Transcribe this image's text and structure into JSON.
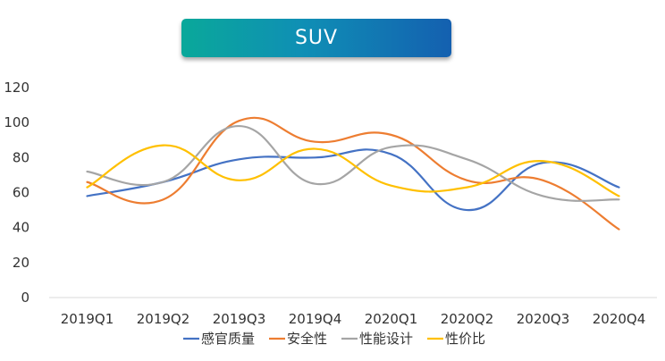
{
  "chart_data": {
    "type": "line",
    "title": "SUV",
    "categories": [
      "2019Q1",
      "2019Q2",
      "2019Q3",
      "2019Q4",
      "2020Q1",
      "2020Q2",
      "2020Q3",
      "2020Q4"
    ],
    "ylim": [
      0,
      120
    ],
    "yticks": [
      0,
      20,
      40,
      60,
      80,
      100,
      120
    ],
    "xlabel": "",
    "ylabel": "",
    "grid": false,
    "legend_position": "bottom",
    "series": [
      {
        "name": "感官质量",
        "color": "#4472c4",
        "values": [
          58,
          66,
          79,
          80,
          82,
          50,
          77,
          63
        ]
      },
      {
        "name": "安全性",
        "color": "#ed7d31",
        "values": [
          66,
          56,
          101,
          89,
          93,
          67,
          67,
          39
        ]
      },
      {
        "name": "性能设计",
        "color": "#a5a5a5",
        "values": [
          72,
          66,
          98,
          65,
          86,
          79,
          58,
          56
        ]
      },
      {
        "name": "性价比",
        "color": "#ffc000",
        "values": [
          63,
          87,
          67,
          85,
          64,
          63,
          78,
          58
        ]
      }
    ]
  }
}
